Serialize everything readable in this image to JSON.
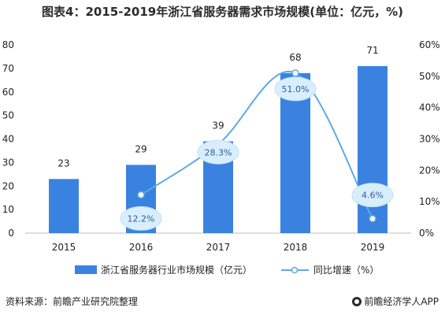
{
  "chart_data": {
    "type": "bar",
    "title": "图表4：2015-2019年浙江省服务器需求市场规模(单位：亿元，%)",
    "categories": [
      "2015",
      "2016",
      "2017",
      "2018",
      "2019"
    ],
    "series": [
      {
        "name": "浙江省服务器行业市场规模（亿元）",
        "type": "bar",
        "axis": "left",
        "values": [
          23,
          29,
          39,
          68,
          71
        ],
        "labels": [
          "23",
          "29",
          "39",
          "68",
          "71"
        ],
        "color": "#3a82e0"
      },
      {
        "name": "同比增速（%）",
        "type": "line",
        "axis": "right",
        "x": [
          "2016",
          "2017",
          "2018",
          "2019"
        ],
        "values": [
          12.2,
          28.3,
          51.0,
          4.6
        ],
        "labels": [
          "12.2%",
          "28.3%",
          "51.0%",
          "4.6%"
        ],
        "color": "#3a82e0"
      }
    ],
    "y_left": {
      "ylim": [
        0,
        80
      ],
      "ticks": [
        "0",
        "10",
        "20",
        "30",
        "40",
        "50",
        "60",
        "70",
        "80"
      ]
    },
    "y_right": {
      "ylim": [
        0,
        60
      ],
      "ticks": [
        "0%",
        "10%",
        "20%",
        "30%",
        "40%",
        "50%",
        "60%"
      ]
    },
    "legend_position": "bottom"
  },
  "footer": {
    "source": "资料来源：前瞻产业研究院整理",
    "credit": "前瞻经济学人APP"
  }
}
